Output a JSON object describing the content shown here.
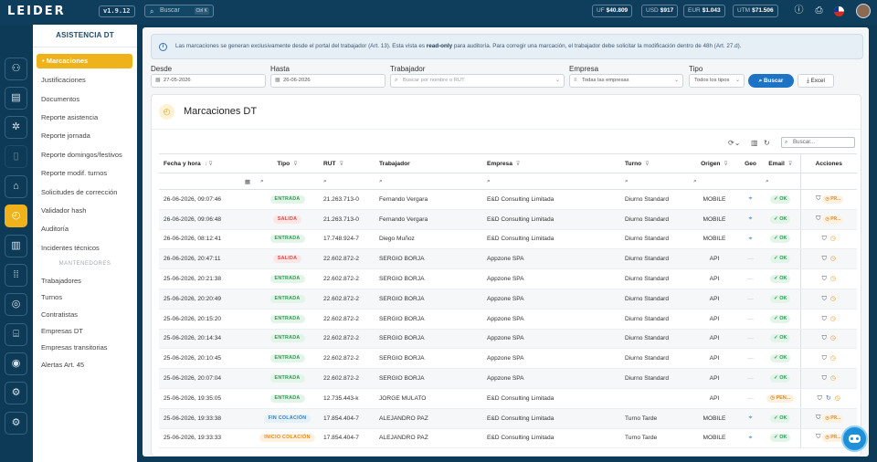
{
  "topbar": {
    "logo": "LEIDER",
    "version": "v1.9.12",
    "search_placeholder": "Buscar",
    "search_shortcut": "Ctrl K",
    "indicators": [
      {
        "key": "UF",
        "value": "$40.809"
      },
      {
        "key": "USD",
        "value": "$917"
      },
      {
        "key": "EUR",
        "value": "$1.043"
      },
      {
        "key": "UTM",
        "value": "$71.506"
      }
    ]
  },
  "rail": {
    "icons": [
      "users-icon",
      "id-card-icon",
      "gear-cog-icon",
      "document-icon",
      "building-icon",
      "clock-icon",
      "report-icon",
      "grid-icon",
      "compass-icon",
      "org-chart-icon",
      "fingerprint-icon",
      "settings-icon",
      "settings-alt-icon"
    ],
    "active_index": 5
  },
  "sidebar": {
    "title": "ASISTENCIA DT",
    "items": [
      "Marcaciones",
      "Justificaciones",
      "Documentos",
      "Reporte asistencia",
      "Reporte jornada",
      "Reporte domingos/festivos",
      "Reporte modif. turnos",
      "Solicitudes de corrección",
      "Validador hash",
      "Auditoría",
      "Incidentes técnicos"
    ],
    "group_label": "MANTENEDORES",
    "maint_items": [
      "Trabajadores",
      "Turnos",
      "Contratistas",
      "Empresas DT",
      "Empresas transitorias",
      "Alertas Art. 45"
    ]
  },
  "info": {
    "text_before": "Las marcaciones se generan exclusivamente desde el portal del trabajador (Art. 13). Esta vista es ",
    "text_bold": "read-only",
    "text_after": " para auditoría. Para corregir una marcación, el trabajador debe solicitar la modificación dentro de 48h (Art. 27.d)."
  },
  "filters": {
    "desde_label": "Desde",
    "desde_value": "27-05-2026",
    "hasta_label": "Hasta",
    "hasta_value": "26-06-2026",
    "trabajador_label": "Trabajador",
    "trabajador_placeholder": "Buscar por nombre o RUT",
    "empresa_label": "Empresa",
    "empresa_value": "Todas las empresas",
    "tipo_label": "Tipo",
    "tipo_value": "Todos los tipos",
    "buscar_label": "Buscar",
    "excel_label": "Excel"
  },
  "card": {
    "title": "Marcaciones DT",
    "search_placeholder": "Buscar..."
  },
  "table": {
    "headers": [
      "Fecha y hora",
      "Tipo",
      "RUT",
      "Trabajador",
      "Empresa",
      "Turno",
      "Origen",
      "Geo",
      "Email",
      "Acciones"
    ],
    "rows": [
      {
        "fecha": "26-06-2026, 09:07:46",
        "tipo": "ENTRADA",
        "rut": "21.263.713-0",
        "trabajador": "Fernando Vergara",
        "empresa": "E&D Consulting Limitada",
        "turno": "Diurno Standard",
        "origen": "MOBILE",
        "geo": true,
        "email": "OK",
        "accion": "PR..."
      },
      {
        "fecha": "26-06-2026, 09:06:48",
        "tipo": "SALIDA",
        "rut": "21.263.713-0",
        "trabajador": "Fernando Vergara",
        "empresa": "E&D Consulting Limitada",
        "turno": "Diurno Standard",
        "origen": "MOBILE",
        "geo": true,
        "email": "OK",
        "accion": "PR..."
      },
      {
        "fecha": "26-06-2026, 08:12:41",
        "tipo": "ENTRADA",
        "rut": "17.748.924-7",
        "trabajador": "Diego Muñoz",
        "empresa": "E&D Consulting Limitada",
        "turno": "Diurno Standard",
        "origen": "MOBILE",
        "geo": true,
        "email": "OK",
        "accion": ""
      },
      {
        "fecha": "26-06-2026, 20:47:11",
        "tipo": "SALIDA",
        "rut": "22.602.872-2",
        "trabajador": "SERGIO BORJA",
        "empresa": "Appzone SPA",
        "turno": "Diurno Standard",
        "origen": "API",
        "geo": false,
        "email": "OK",
        "accion": ""
      },
      {
        "fecha": "25-06-2026, 20:21:38",
        "tipo": "ENTRADA",
        "rut": "22.602.872-2",
        "trabajador": "SERGIO BORJA",
        "empresa": "Appzone SPA",
        "turno": "Diurno Standard",
        "origen": "API",
        "geo": false,
        "email": "OK",
        "accion": ""
      },
      {
        "fecha": "25-06-2026, 20:20:49",
        "tipo": "ENTRADA",
        "rut": "22.602.872-2",
        "trabajador": "SERGIO BORJA",
        "empresa": "Appzone SPA",
        "turno": "Diurno Standard",
        "origen": "API",
        "geo": false,
        "email": "OK",
        "accion": ""
      },
      {
        "fecha": "25-06-2026, 20:15:20",
        "tipo": "ENTRADA",
        "rut": "22.602.872-2",
        "trabajador": "SERGIO BORJA",
        "empresa": "Appzone SPA",
        "turno": "Diurno Standard",
        "origen": "API",
        "geo": false,
        "email": "OK",
        "accion": ""
      },
      {
        "fecha": "25-06-2026, 20:14:34",
        "tipo": "ENTRADA",
        "rut": "22.602.872-2",
        "trabajador": "SERGIO BORJA",
        "empresa": "Appzone SPA",
        "turno": "Diurno Standard",
        "origen": "API",
        "geo": false,
        "email": "OK",
        "accion": ""
      },
      {
        "fecha": "25-06-2026, 20:10:45",
        "tipo": "ENTRADA",
        "rut": "22.602.872-2",
        "trabajador": "SERGIO BORJA",
        "empresa": "Appzone SPA",
        "turno": "Diurno Standard",
        "origen": "API",
        "geo": false,
        "email": "OK",
        "accion": ""
      },
      {
        "fecha": "25-06-2026, 20:07:04",
        "tipo": "ENTRADA",
        "rut": "22.602.872-2",
        "trabajador": "SERGIO BORJA",
        "empresa": "Appzone SPA",
        "turno": "Diurno Standard",
        "origen": "API",
        "geo": false,
        "email": "OK",
        "accion": ""
      },
      {
        "fecha": "25-06-2026, 19:35:05",
        "tipo": "ENTRADA",
        "rut": "12.735.443-k",
        "trabajador": "JORGE MULATO",
        "empresa": "E&D Consulting Limitada",
        "turno": "",
        "origen": "API",
        "geo": false,
        "email": "PEN...",
        "accion": ""
      },
      {
        "fecha": "25-06-2026, 19:33:38",
        "tipo": "FIN COLACIÓN",
        "rut": "17.854.404-7",
        "trabajador": "ALEJANDRO PAZ",
        "empresa": "E&D Consulting Limitada",
        "turno": "Turno Tarde",
        "origen": "MOBILE",
        "geo": true,
        "email": "OK",
        "accion": "PR..."
      },
      {
        "fecha": "25-06-2026, 19:33:33",
        "tipo": "INICIO COLACIÓN",
        "rut": "17.854.404-7",
        "trabajador": "ALEJANDRO PAZ",
        "empresa": "E&D Consulting Limitada",
        "turno": "Turno Tarde",
        "origen": "MOBILE",
        "geo": true,
        "email": "OK",
        "accion": "PR..."
      }
    ]
  }
}
